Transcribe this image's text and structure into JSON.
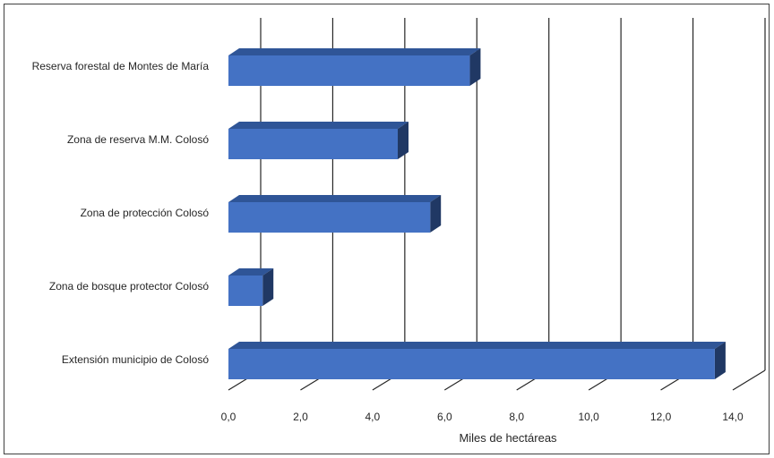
{
  "chart_data": {
    "type": "bar",
    "orientation": "horizontal",
    "three_d": true,
    "categories": [
      "Reserva forestal de Montes de María",
      "Zona de reserva M.M. Colosó",
      "Zona de protección Colosó",
      "Zona de bosque protector Colosó",
      "Extensión municipio de Colosó"
    ],
    "values": [
      6.7,
      4.7,
      5.6,
      0.95,
      13.5
    ],
    "xlabel": "Miles de hectáreas",
    "ylabel": "",
    "xlim": [
      0,
      14
    ],
    "ticks": [
      "0,0",
      "2,0",
      "4,0",
      "6,0",
      "8,0",
      "10,0",
      "12,0",
      "14,0"
    ],
    "grid": true,
    "legend": "none",
    "colors": {
      "bar_front": "#4472C4",
      "bar_top": "#2F5597",
      "bar_side": "#203864",
      "grid": "#262626"
    }
  }
}
